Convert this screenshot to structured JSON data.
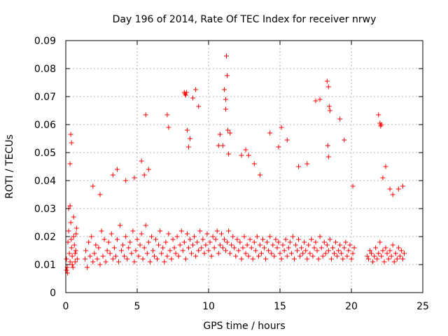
{
  "chart_data": {
    "type": "scatter",
    "title": "Day 196 of 2014, Rate Of TEC Index for receiver nrwy",
    "xlabel": "GPS time / hours",
    "ylabel": "ROTI / TECUs",
    "xlim": [
      0,
      25
    ],
    "ylim": [
      0,
      0.09
    ],
    "xticks": [
      0,
      5,
      10,
      15,
      20,
      25
    ],
    "xtick_labels": [
      "0",
      "5",
      "10",
      "15",
      "20",
      "25"
    ],
    "yticks": [
      0,
      0.01,
      0.02,
      0.03,
      0.04,
      0.05,
      0.06,
      0.07,
      0.08,
      0.09
    ],
    "ytick_labels": [
      "0",
      "0.01",
      "0.02",
      "0.03",
      "0.04",
      "0.05",
      "0.06",
      "0.07",
      "0.08",
      "0.09"
    ],
    "grid": true,
    "marker": "+",
    "color": "#ff0000",
    "series": [
      {
        "x": [
          0.05,
          0.1,
          0.15,
          0.2,
          0.25,
          0.3,
          0.35,
          0.4,
          0.45,
          0.5,
          0.55,
          0.6,
          0.65,
          0.7,
          0.75,
          0.8,
          0.05,
          0.12,
          0.2,
          0.3,
          0.38,
          0.45,
          0.55,
          0.65,
          0.72,
          1.35,
          1.4,
          1.5,
          1.6,
          1.7,
          1.8,
          1.9,
          2.0,
          2.1,
          2.2,
          2.3,
          2.4,
          2.5,
          2.6,
          2.7,
          2.8,
          2.9,
          3.0,
          3.1,
          3.2,
          3.3,
          3.4,
          3.5,
          3.6,
          3.7,
          3.8,
          3.9,
          4.0,
          4.1,
          4.2,
          4.3,
          4.4,
          4.5,
          4.6,
          4.7,
          4.8,
          4.9,
          5.0,
          5.1,
          5.2,
          5.3,
          5.4,
          5.5,
          5.6,
          5.7,
          5.8,
          5.9,
          6.0,
          6.1,
          6.2,
          6.3,
          6.4,
          6.5,
          6.6,
          6.7,
          6.8,
          6.9,
          7.0,
          7.1,
          7.2,
          7.3,
          7.4,
          7.5,
          7.6,
          7.7,
          7.8,
          7.9,
          8.0,
          8.1,
          8.2,
          8.3,
          8.4,
          8.5,
          8.6,
          8.7,
          8.8,
          8.9,
          9.0,
          9.1,
          9.2,
          9.3,
          9.4,
          9.5,
          9.6,
          9.7,
          9.8,
          9.9,
          10.0,
          10.1,
          10.2,
          10.3,
          10.4,
          10.5,
          10.6,
          10.7,
          10.8,
          10.9,
          11.0,
          11.1,
          11.2,
          11.3,
          11.4,
          11.5,
          11.6,
          11.7,
          11.8,
          11.9,
          12.0,
          12.1,
          12.2,
          12.3,
          12.4,
          12.5,
          12.6,
          12.7,
          12.8,
          12.9,
          13.0,
          13.1,
          13.2,
          13.3,
          13.4,
          13.5,
          13.6,
          13.7,
          13.8,
          13.9,
          14.0,
          14.1,
          14.2,
          14.3,
          14.4,
          14.5,
          14.6,
          14.7,
          14.8,
          14.9,
          15.0,
          15.1,
          15.2,
          15.3,
          15.4,
          15.5,
          15.6,
          15.7,
          15.8,
          15.9,
          16.0,
          16.1,
          16.2,
          16.3,
          16.4,
          16.5,
          16.6,
          16.7,
          16.8,
          16.9,
          17.0,
          17.1,
          17.2,
          17.3,
          17.4,
          17.5,
          17.6,
          17.7,
          17.8,
          17.9,
          18.0,
          18.1,
          18.2,
          18.3,
          18.4,
          18.5,
          18.6,
          18.7,
          18.8,
          18.9,
          19.0,
          19.1,
          19.2,
          19.3,
          19.4,
          19.5,
          19.6,
          19.7,
          19.8,
          19.9,
          20.0,
          20.1,
          20.2,
          21.1,
          21.2,
          21.3,
          21.4,
          21.5,
          21.6,
          21.7,
          21.8,
          21.9,
          22.0,
          22.1,
          22.2,
          22.3,
          22.4,
          22.5,
          22.6,
          22.7,
          22.8,
          22.9,
          23.0,
          23.1,
          23.2,
          23.3,
          23.4,
          23.5,
          23.6,
          23.7,
          0.35,
          0.3,
          0.4,
          1.9,
          2.4,
          3.3,
          3.6,
          4.2,
          4.8,
          5.3,
          5.6,
          5.8,
          5.5,
          7.1,
          7.2,
          8.3,
          8.35,
          8.4,
          8.45,
          8.5,
          8.6,
          8.9,
          9.1,
          9.3,
          8.7,
          10.7,
          10.8,
          11.0,
          11.1,
          11.2,
          11.25,
          11.3,
          11.35,
          11.2,
          11.4,
          11.5,
          12.3,
          12.6,
          12.8,
          13.2,
          13.6,
          14.3,
          14.9,
          15.1,
          15.5,
          16.3,
          16.9,
          17.5,
          17.8,
          18.3,
          18.4,
          18.45,
          18.5,
          18.35,
          18.4,
          19.2,
          19.5,
          20.1,
          21.9,
          22.0,
          22.05,
          22.1,
          22.2,
          22.4,
          22.7,
          22.9,
          23.3,
          23.6
        ],
        "y": [
          0.012,
          0.009,
          0.018,
          0.022,
          0.014,
          0.011,
          0.025,
          0.016,
          0.013,
          0.009,
          0.02,
          0.017,
          0.011,
          0.015,
          0.023,
          0.012,
          0.008,
          0.007,
          0.03,
          0.031,
          0.019,
          0.01,
          0.027,
          0.014,
          0.021,
          0.012,
          0.015,
          0.009,
          0.018,
          0.013,
          0.02,
          0.011,
          0.014,
          0.017,
          0.012,
          0.016,
          0.01,
          0.022,
          0.013,
          0.019,
          0.011,
          0.015,
          0.018,
          0.014,
          0.021,
          0.012,
          0.016,
          0.013,
          0.019,
          0.011,
          0.024,
          0.015,
          0.017,
          0.013,
          0.02,
          0.012,
          0.016,
          0.018,
          0.014,
          0.022,
          0.011,
          0.015,
          0.019,
          0.013,
          0.017,
          0.021,
          0.012,
          0.016,
          0.024,
          0.014,
          0.018,
          0.011,
          0.02,
          0.015,
          0.013,
          0.019,
          0.012,
          0.017,
          0.022,
          0.014,
          0.016,
          0.011,
          0.018,
          0.013,
          0.021,
          0.015,
          0.012,
          0.019,
          0.016,
          0.014,
          0.02,
          0.013,
          0.017,
          0.022,
          0.015,
          0.018,
          0.012,
          0.021,
          0.016,
          0.019,
          0.014,
          0.017,
          0.02,
          0.013,
          0.018,
          0.015,
          0.022,
          0.016,
          0.019,
          0.014,
          0.017,
          0.021,
          0.015,
          0.018,
          0.013,
          0.02,
          0.016,
          0.019,
          0.022,
          0.014,
          0.017,
          0.021,
          0.016,
          0.019,
          0.015,
          0.018,
          0.022,
          0.014,
          0.017,
          0.02,
          0.016,
          0.013,
          0.019,
          0.015,
          0.018,
          0.012,
          0.016,
          0.02,
          0.014,
          0.017,
          0.013,
          0.019,
          0.016,
          0.012,
          0.018,
          0.015,
          0.02,
          0.013,
          0.017,
          0.014,
          0.019,
          0.016,
          0.012,
          0.018,
          0.015,
          0.02,
          0.014,
          0.017,
          0.013,
          0.019,
          0.016,
          0.018,
          0.014,
          0.012,
          0.017,
          0.015,
          0.019,
          0.013,
          0.016,
          0.018,
          0.014,
          0.02,
          0.012,
          0.017,
          0.015,
          0.019,
          0.013,
          0.016,
          0.014,
          0.018,
          0.015,
          0.012,
          0.017,
          0.014,
          0.019,
          0.013,
          0.016,
          0.018,
          0.015,
          0.012,
          0.02,
          0.016,
          0.013,
          0.018,
          0.014,
          0.017,
          0.015,
          0.019,
          0.012,
          0.016,
          0.014,
          0.018,
          0.013,
          0.015,
          0.017,
          0.014,
          0.012,
          0.016,
          0.018,
          0.013,
          0.015,
          0.017,
          0.012,
          0.014,
          0.016,
          0.013,
          0.012,
          0.015,
          0.014,
          0.011,
          0.013,
          0.016,
          0.012,
          0.014,
          0.018,
          0.013,
          0.015,
          0.011,
          0.016,
          0.014,
          0.012,
          0.015,
          0.013,
          0.017,
          0.011,
          0.014,
          0.012,
          0.016,
          0.013,
          0.015,
          0.012,
          0.014,
          0.0565,
          0.046,
          0.0535,
          0.038,
          0.035,
          0.042,
          0.044,
          0.04,
          0.041,
          0.047,
          0.0635,
          0.044,
          0.042,
          0.0635,
          0.059,
          0.0715,
          0.071,
          0.0705,
          0.0715,
          0.058,
          0.052,
          0.0695,
          0.0725,
          0.0665,
          0.055,
          0.0525,
          0.0565,
          0.0525,
          0.0725,
          0.069,
          0.0845,
          0.0775,
          0.058,
          0.0655,
          0.0495,
          0.057,
          0.049,
          0.051,
          0.049,
          0.046,
          0.042,
          0.057,
          0.052,
          0.059,
          0.0545,
          0.045,
          0.046,
          0.0685,
          0.069,
          0.0755,
          0.0735,
          0.0665,
          0.065,
          0.0525,
          0.0485,
          0.062,
          0.0545,
          0.038,
          0.0635,
          0.0605,
          0.0595,
          0.06,
          0.041,
          0.045,
          0.037,
          0.035,
          0.037,
          0.038
        ]
      }
    ]
  }
}
